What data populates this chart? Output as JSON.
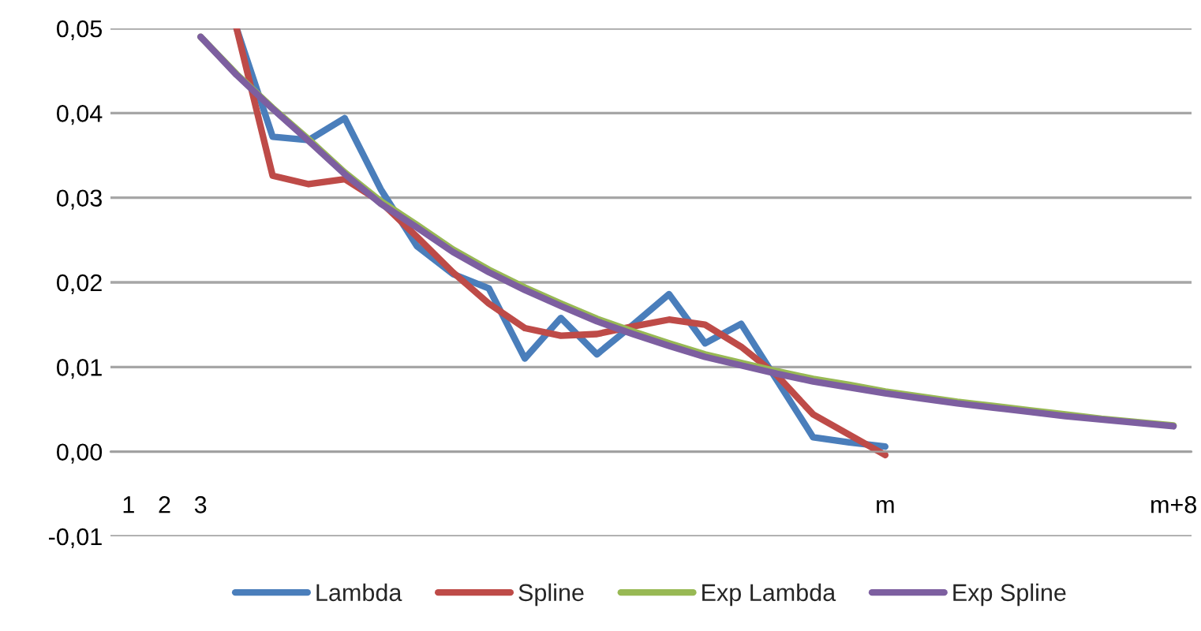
{
  "chart_data": {
    "type": "line",
    "categories": [
      "1",
      "2",
      "3",
      null,
      null,
      null,
      null,
      null,
      null,
      null,
      null,
      null,
      null,
      null,
      null,
      null,
      null,
      null,
      null,
      null,
      null,
      "m",
      null,
      null,
      null,
      null,
      null,
      null,
      null,
      "m+8"
    ],
    "series": [
      {
        "name": "Lambda",
        "color": "#4a7ebb",
        "values": [
          null,
          null,
          null,
          0.05,
          0.0372,
          0.0368,
          0.0394,
          0.031,
          0.0243,
          0.021,
          0.0193,
          0.011,
          0.0158,
          0.0115,
          0.015,
          0.0186,
          0.0128,
          0.0151,
          0.0084,
          0.0017,
          0.0011,
          0.0006,
          null,
          null,
          null,
          null,
          null,
          null,
          null,
          null
        ]
      },
      {
        "name": "Spline",
        "color": "#be4b48",
        "values": [
          null,
          null,
          null,
          0.05,
          0.0326,
          0.0316,
          0.0322,
          0.0295,
          0.0254,
          0.0212,
          0.0175,
          0.0146,
          0.0137,
          0.0139,
          0.0148,
          0.0156,
          0.015,
          0.0124,
          0.009,
          0.0044,
          0.002,
          -0.0004,
          null,
          null,
          null,
          null,
          null,
          null,
          null,
          null
        ]
      },
      {
        "name": "Exp Lambda",
        "color": "#98b954",
        "values": [
          null,
          null,
          0.049,
          0.0446,
          0.0406,
          0.0369,
          0.033,
          0.0296,
          0.0268,
          0.0239,
          0.0215,
          0.0194,
          0.0175,
          0.0157,
          0.0142,
          0.0128,
          0.0115,
          0.0105,
          0.0095,
          0.0086,
          0.0079,
          0.0071,
          0.0065,
          0.0059,
          0.0054,
          0.0049,
          0.0044,
          0.0039,
          0.0035,
          0.0031
        ]
      },
      {
        "name": "Exp Spline",
        "color": "#7d5fa0",
        "values": [
          null,
          null,
          0.049,
          0.0445,
          0.0405,
          0.0367,
          0.0328,
          0.0293,
          0.0265,
          0.0236,
          0.0212,
          0.0191,
          0.0172,
          0.0154,
          0.0139,
          0.0125,
          0.0112,
          0.0102,
          0.0092,
          0.0083,
          0.0076,
          0.0069,
          0.0063,
          0.0057,
          0.0052,
          0.0047,
          0.0042,
          0.0038,
          0.0034,
          0.003
        ]
      }
    ],
    "ylim": [
      -0.01,
      0.05
    ],
    "yticks": [
      {
        "value": -0.01,
        "label": "-0,01"
      },
      {
        "value": 0,
        "label": "0,00"
      },
      {
        "value": 0.01,
        "label": "0,01"
      },
      {
        "value": 0.02,
        "label": "0,02"
      },
      {
        "value": 0.03,
        "label": "0,03"
      },
      {
        "value": 0.04,
        "label": "0,04"
      },
      {
        "value": 0.05,
        "label": "0,05"
      }
    ],
    "grid": "y",
    "legend": "bottom",
    "marker": "none",
    "line_style": "solid"
  }
}
